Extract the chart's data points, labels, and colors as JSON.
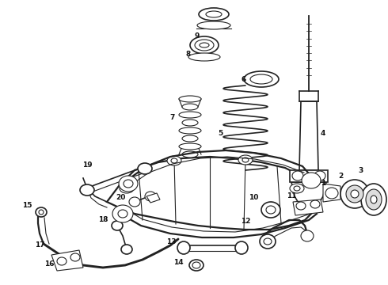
{
  "bg_color": "#ffffff",
  "line_color": "#222222",
  "label_color": "#111111",
  "label_fontsize": 6.5,
  "fig_width": 4.9,
  "fig_height": 3.6,
  "dpi": 100
}
